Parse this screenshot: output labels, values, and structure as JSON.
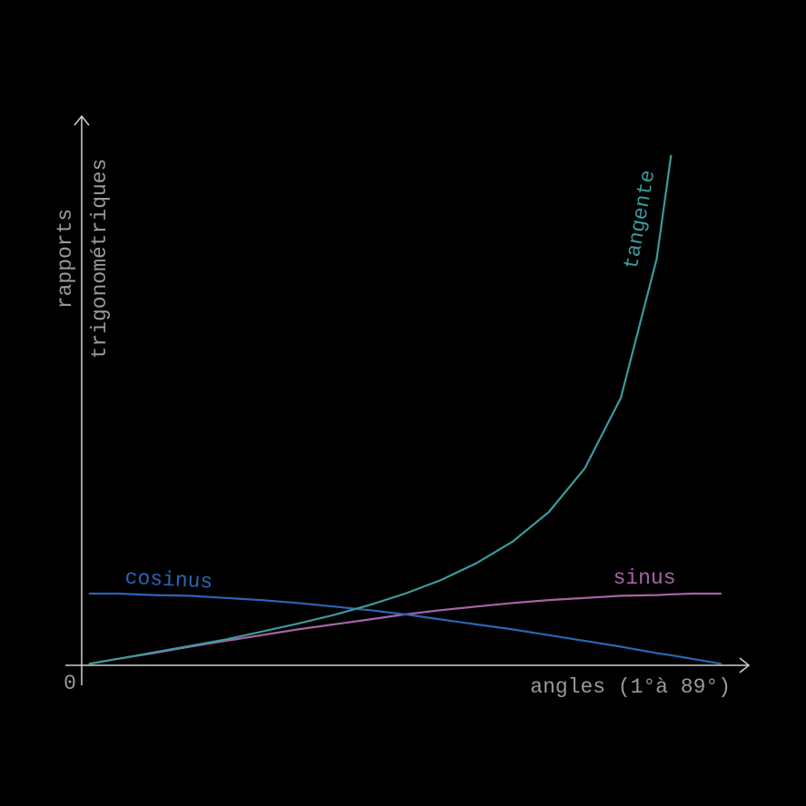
{
  "chart_data": {
    "type": "line",
    "x_label": "angles (1°à 89°)",
    "y_label": [
      "rapports",
      "trigonométriques"
    ],
    "x": [
      1,
      5,
      10,
      15,
      20,
      25,
      30,
      35,
      40,
      45,
      50,
      55,
      60,
      65,
      70,
      75,
      80,
      82,
      85,
      89
    ],
    "series": [
      {
        "name": "sinus",
        "color": "#a565a5",
        "values": [
          0.02,
          0.09,
          0.17,
          0.26,
          0.34,
          0.42,
          0.5,
          0.57,
          0.64,
          0.71,
          0.77,
          0.82,
          0.87,
          0.91,
          0.94,
          0.97,
          0.98,
          0.99,
          1.0,
          1.0
        ]
      },
      {
        "name": "cosinus",
        "color": "#2b65b5",
        "values": [
          1.0,
          1.0,
          0.98,
          0.97,
          0.94,
          0.91,
          0.87,
          0.82,
          0.77,
          0.71,
          0.64,
          0.57,
          0.5,
          0.42,
          0.34,
          0.26,
          0.17,
          0.14,
          0.09,
          0.02
        ]
      },
      {
        "name": "tangente",
        "color": "#3a9a9c",
        "values": [
          0.02,
          0.09,
          0.18,
          0.27,
          0.36,
          0.47,
          0.58,
          0.7,
          0.84,
          1.0,
          1.19,
          1.43,
          1.73,
          2.14,
          2.75,
          3.73,
          5.67,
          7.12,
          null,
          null
        ]
      }
    ],
    "xlim": [
      0,
      93
    ],
    "ylim": [
      0,
      7.66
    ],
    "xticks": [
      0
    ]
  }
}
